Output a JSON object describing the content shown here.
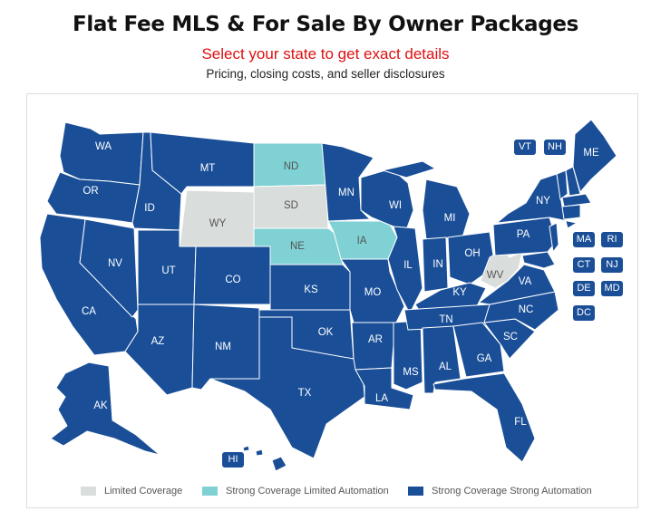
{
  "header": {
    "title": "Flat Fee MLS & For Sale By Owner Packages",
    "subtitle": "Select your state to get exact details",
    "tagline": "Pricing, closing costs, and seller disclosures"
  },
  "colors": {
    "strong_strong": "#1a4f98",
    "strong_limited": "#7fd1d4",
    "limited": "#d9dddb",
    "subtitle_red": "#dd1111"
  },
  "states": {
    "WA": "WA",
    "OR": "OR",
    "CA": "CA",
    "ID": "ID",
    "NV": "NV",
    "MT": "MT",
    "WY": "WY",
    "UT": "UT",
    "AZ": "AZ",
    "CO": "CO",
    "NM": "NM",
    "ND": "ND",
    "SD": "SD",
    "NE": "NE",
    "KS": "KS",
    "OK": "OK",
    "TX": "TX",
    "MN": "MN",
    "IA": "IA",
    "MO": "MO",
    "AR": "AR",
    "LA": "LA",
    "WI": "WI",
    "IL": "IL",
    "MS": "MS",
    "MI": "MI",
    "IN": "IN",
    "OH": "OH",
    "KY": "KY",
    "TN": "TN",
    "AL": "AL",
    "GA": "GA",
    "FL": "FL",
    "SC": "SC",
    "NC": "NC",
    "VA": "VA",
    "WV": "WV",
    "PA": "PA",
    "NY": "NY",
    "ME": "ME",
    "AK": "AK"
  },
  "chips": {
    "VT": "VT",
    "NH": "NH",
    "MA": "MA",
    "RI": "RI",
    "CT": "CT",
    "NJ": "NJ",
    "DE": "DE",
    "MD": "MD",
    "DC": "DC",
    "HI": "HI"
  },
  "legend": {
    "limited": "Limited Coverage",
    "strong_limited": "Strong Coverage Limited Automation",
    "strong_strong": "Strong Coverage Strong Automation"
  }
}
